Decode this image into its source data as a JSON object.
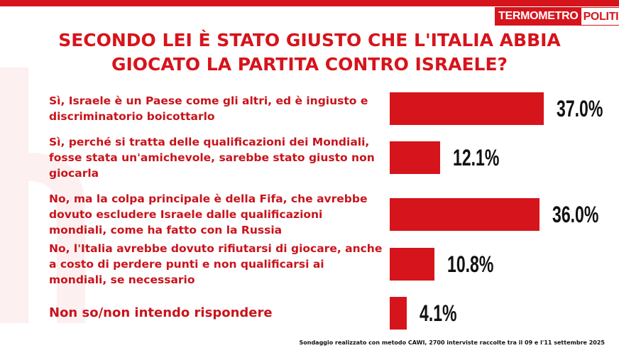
{
  "brand": {
    "part1": "TERMOMETRO",
    "part2": "POLITICO"
  },
  "title_lines": [
    "SECONDO LEI È STATO GIUSTO CHE L'ITALIA ABBIA",
    "GIOCATO LA PARTITA CONTRO ISRAELE?"
  ],
  "footnote": "Sondaggio realizzato con metodo CAWI, 2700 interviste raccolte tra il 09 e l'11  settembre 2025",
  "colors": {
    "accent": "#d6141c",
    "value_text": "#111111"
  },
  "chart_data": {
    "type": "bar",
    "orientation": "horizontal",
    "title": "SECONDO LEI È STATO GIUSTO CHE L'ITALIA ABBIA GIOCATO LA PARTITA CONTRO ISRAELE?",
    "categories": [
      [
        "Sì, Israele è un Paese come gli altri, ed è ingiusto e",
        "discriminatorio boicottarlo"
      ],
      [
        "Sì, perché si tratta delle qualificazioni dei Mondiali,",
        "fosse stata un'amichevole, sarebbe stato giusto non",
        "giocarla"
      ],
      [
        "No, ma la colpa principale è della Fifa, che avrebbe",
        "dovuto escludere Israele dalle qualificazioni",
        "mondiali, come ha fatto con la Russia"
      ],
      [
        "No, l'Italia avrebbe dovuto rifiutarsi di giocare, anche",
        "a costo di perdere punti e non qualificarsi ai",
        "mondiali, se necessario"
      ],
      [
        "Non so/non intendo rispondere"
      ]
    ],
    "values": [
      37.0,
      12.1,
      36.0,
      10.8,
      4.1
    ],
    "value_labels": [
      "37.0%",
      "12.1%",
      "36.0%",
      "10.8%",
      "4.1%"
    ],
    "unit": "%"
  }
}
